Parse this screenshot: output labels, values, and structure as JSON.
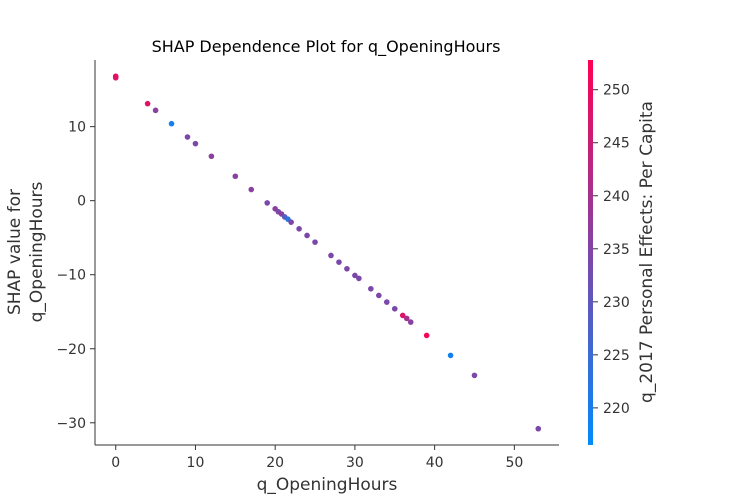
{
  "chart_data": {
    "type": "scatter",
    "title": "SHAP Dependence Plot for q_OpeningHours",
    "xlabel": "q_OpeningHours",
    "ylabel_lines": [
      "SHAP value for",
      "q_OpeningHours"
    ],
    "xlim": [
      -2.6,
      55.6
    ],
    "ylim": [
      -33.0,
      19.0
    ],
    "xticks": [
      0,
      10,
      20,
      30,
      40,
      50
    ],
    "yticks": [
      -30,
      -20,
      -10,
      0,
      10
    ],
    "colorbar": {
      "label": "q_2017 Personal Effects: Per Capita",
      "min": 216.5,
      "max": 252.8,
      "ticks": [
        220,
        225,
        230,
        235,
        240,
        245,
        250
      ],
      "colors": [
        "#008bfb",
        "#ff0052"
      ]
    },
    "grid": false,
    "points": [
      {
        "x": 0,
        "y": 16.8,
        "c": 251
      },
      {
        "x": 0,
        "y": 16.6,
        "c": 248
      },
      {
        "x": 4,
        "y": 13.1,
        "c": 248
      },
      {
        "x": 5,
        "y": 12.2,
        "c": 236
      },
      {
        "x": 7,
        "y": 10.4,
        "c": 219
      },
      {
        "x": 9,
        "y": 8.6,
        "c": 234
      },
      {
        "x": 10,
        "y": 7.7,
        "c": 234
      },
      {
        "x": 12,
        "y": 6.0,
        "c": 236
      },
      {
        "x": 15,
        "y": 3.3,
        "c": 236
      },
      {
        "x": 17,
        "y": 1.5,
        "c": 236
      },
      {
        "x": 19,
        "y": -0.3,
        "c": 234
      },
      {
        "x": 20,
        "y": -1.1,
        "c": 236
      },
      {
        "x": 20.4,
        "y": -1.5,
        "c": 234
      },
      {
        "x": 20.8,
        "y": -1.8,
        "c": 236
      },
      {
        "x": 21.2,
        "y": -2.2,
        "c": 229
      },
      {
        "x": 21.6,
        "y": -2.5,
        "c": 222
      },
      {
        "x": 22,
        "y": -2.9,
        "c": 234
      },
      {
        "x": 23,
        "y": -3.8,
        "c": 234
      },
      {
        "x": 24,
        "y": -4.7,
        "c": 234
      },
      {
        "x": 25,
        "y": -5.6,
        "c": 234
      },
      {
        "x": 27,
        "y": -7.4,
        "c": 234
      },
      {
        "x": 28,
        "y": -8.3,
        "c": 234
      },
      {
        "x": 29,
        "y": -9.2,
        "c": 234
      },
      {
        "x": 30,
        "y": -10.1,
        "c": 234
      },
      {
        "x": 30.5,
        "y": -10.5,
        "c": 234
      },
      {
        "x": 32,
        "y": -11.9,
        "c": 234
      },
      {
        "x": 33,
        "y": -12.8,
        "c": 234
      },
      {
        "x": 34,
        "y": -13.7,
        "c": 234
      },
      {
        "x": 35,
        "y": -14.6,
        "c": 234
      },
      {
        "x": 36,
        "y": -15.5,
        "c": 248
      },
      {
        "x": 36.5,
        "y": -15.9,
        "c": 240
      },
      {
        "x": 37,
        "y": -16.4,
        "c": 236
      },
      {
        "x": 39,
        "y": -18.2,
        "c": 251
      },
      {
        "x": 42,
        "y": -20.9,
        "c": 219
      },
      {
        "x": 45,
        "y": -23.6,
        "c": 234
      },
      {
        "x": 53,
        "y": -30.8,
        "c": 234
      }
    ]
  }
}
